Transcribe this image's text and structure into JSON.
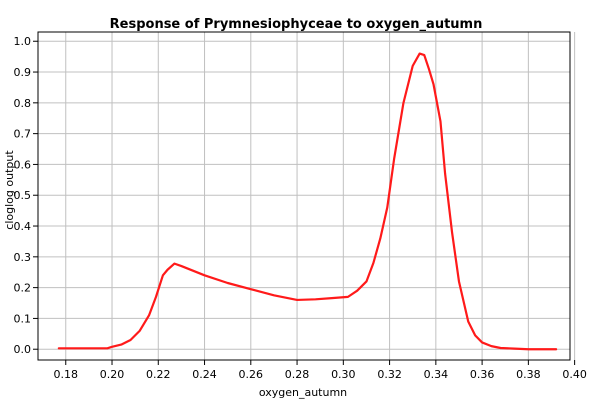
{
  "chart_data": {
    "type": "line",
    "title": "Response of Prymnesiophyceae to oxygen_autumn",
    "xlabel": "oxygen_autumn",
    "ylabel": "cloglog output",
    "xlim": [
      0.168,
      0.398
    ],
    "ylim": [
      -0.035,
      1.03
    ],
    "grid": true,
    "x_ticks": [
      0.18,
      0.2,
      0.22,
      0.24,
      0.26,
      0.28,
      0.3,
      0.32,
      0.34,
      0.36,
      0.38,
      0.4
    ],
    "x_tick_labels": [
      "0.18",
      "0.20",
      "0.22",
      "0.24",
      "0.26",
      "0.28",
      "0.30",
      "0.32",
      "0.34",
      "0.36",
      "0.38",
      "0.40"
    ],
    "y_ticks": [
      0.0,
      0.1,
      0.2,
      0.3,
      0.4,
      0.5,
      0.6,
      0.7,
      0.8,
      0.9,
      1.0
    ],
    "y_tick_labels": [
      "0.0",
      "0.1",
      "0.2",
      "0.3",
      "0.4",
      "0.5",
      "0.6",
      "0.7",
      "0.8",
      "0.9",
      "1.0"
    ],
    "series": [
      {
        "color": "#ff1a1a",
        "x": [
          0.177,
          0.185,
          0.195,
          0.198,
          0.2,
          0.204,
          0.208,
          0.212,
          0.216,
          0.219,
          0.222,
          0.224,
          0.227,
          0.23,
          0.24,
          0.25,
          0.26,
          0.27,
          0.28,
          0.288,
          0.295,
          0.302,
          0.306,
          0.31,
          0.313,
          0.316,
          0.319,
          0.322,
          0.326,
          0.33,
          0.333,
          0.335,
          0.337,
          0.339,
          0.342,
          0.344,
          0.347,
          0.35,
          0.354,
          0.357,
          0.36,
          0.364,
          0.368,
          0.374,
          0.38,
          0.386,
          0.392
        ],
        "y": [
          0.003,
          0.003,
          0.003,
          0.003,
          0.008,
          0.015,
          0.03,
          0.06,
          0.11,
          0.17,
          0.24,
          0.258,
          0.278,
          0.27,
          0.24,
          0.215,
          0.195,
          0.175,
          0.16,
          0.162,
          0.166,
          0.17,
          0.19,
          0.22,
          0.28,
          0.36,
          0.46,
          0.62,
          0.8,
          0.92,
          0.96,
          0.955,
          0.91,
          0.86,
          0.74,
          0.57,
          0.38,
          0.22,
          0.09,
          0.045,
          0.022,
          0.01,
          0.004,
          0.002,
          0.0,
          0.0,
          0.0
        ]
      }
    ]
  }
}
